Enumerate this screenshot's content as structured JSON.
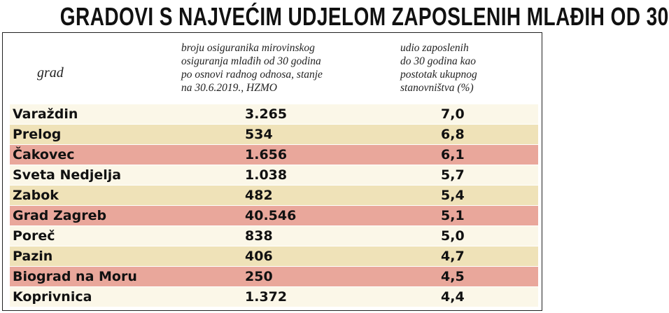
{
  "title": "GRADOVI S NAJVEĆIM UDJELOM ZAPOSLENIH MLAĐIH OD 30",
  "header": {
    "city": "grad",
    "col1_lines": [
      "broju osiguranika mirovinskog",
      "osiguranja mlađih od 30 godina",
      "po osnovi radnog odnosa, stanje",
      "na 30.6.2019., HZMO"
    ],
    "col2_lines": [
      "udio zaposlenih",
      "do 30 godina kao",
      "postotak ukupnog",
      "stanovništva (%)"
    ]
  },
  "colors": {
    "tan": "#efe2b8",
    "cream": "#fbf7e8",
    "salmon": "#e9a79b"
  },
  "rows": [
    {
      "city": "Varaždin",
      "count": "3.265",
      "share": "7,0",
      "color": "#fbf7e8"
    },
    {
      "city": "Prelog",
      "count": "534",
      "share": "6,8",
      "color": "#efe2b8"
    },
    {
      "city": "Čakovec",
      "count": "1.656",
      "share": "6,1",
      "color": "#e9a79b"
    },
    {
      "city": "Sveta Nedjelja",
      "count": "1.038",
      "share": "5,7",
      "color": "#fbf7e8"
    },
    {
      "city": "Zabok",
      "count": "482",
      "share": "5,4",
      "color": "#efe2b8"
    },
    {
      "city": "Grad Zagreb",
      "count": "40.546",
      "share": "5,1",
      "color": "#e9a79b"
    },
    {
      "city": "Poreč",
      "count": "838",
      "share": "5,0",
      "color": "#fbf7e8"
    },
    {
      "city": "Pazin",
      "count": "406",
      "share": "4,7",
      "color": "#efe2b8"
    },
    {
      "city": "Biograd na Moru",
      "count": "250",
      "share": "4,5",
      "color": "#e9a79b"
    },
    {
      "city": "Koprivnica",
      "count": "1.372",
      "share": "4,4",
      "color": "#fbf7e8"
    }
  ]
}
